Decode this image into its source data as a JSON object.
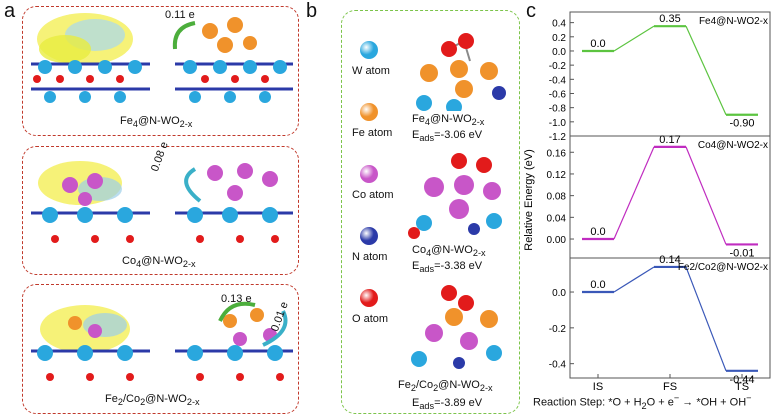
{
  "panel_a": {
    "label": "a",
    "structures": [
      {
        "name_html": "Fe<sub>4</sub>@N-WO<sub>2-x</sub>",
        "transfer": [
          "0.11 e"
        ]
      },
      {
        "name_html": "Co<sub>4</sub>@N-WO<sub>2-x</sub>",
        "transfer": [
          "0.08 e"
        ]
      },
      {
        "name_html": "Fe<sub>2</sub>/Co<sub>2</sub>@N-WO<sub>2-x</sub>",
        "transfer": [
          "0.13 e",
          "0.01 e"
        ]
      }
    ]
  },
  "panel_b": {
    "label": "b",
    "legend": [
      {
        "label": "W atom",
        "color": "#2aa7de"
      },
      {
        "label": "Fe atom",
        "color": "#f0922b"
      },
      {
        "label": "Co atom",
        "color": "#c856c8"
      },
      {
        "label": "N atom",
        "color": "#2b3aa8"
      },
      {
        "label": "O atom",
        "color": "#e21b1b"
      }
    ],
    "structures": [
      {
        "name_html": "Fe<sub>4</sub>@N-WO<sub>2-x</sub>",
        "eads_html": "E<sub>ads</sub>=-3.06 eV"
      },
      {
        "name_html": "Co<sub>4</sub>@N-WO<sub>2-x</sub>",
        "eads_html": "E<sub>ads</sub>=-3.38 eV"
      },
      {
        "name_html": "Fe<sub>2</sub>/Co<sub>2</sub>@N-WO<sub>2-x</sub>",
        "eads_html": "E<sub>ads</sub>=-3.89 eV"
      }
    ]
  },
  "panel_c": {
    "label": "c",
    "ylabel": "Relative Energy (eV)",
    "xlabel_html": "Reaction Step: *O + H<sub>2</sub>O + e<sup>−</sup> → *OH + OH<sup>−</sup>",
    "x_ticks": [
      "IS",
      "FS",
      "TS"
    ]
  },
  "chart_data": [
    {
      "type": "line",
      "title": "Fe4@N-WO2-x",
      "categories": [
        "IS",
        "FS",
        "TS"
      ],
      "values": [
        0.0,
        0.35,
        -0.9
      ],
      "value_labels": [
        "0.0",
        "0.35",
        "-0.90"
      ],
      "color": "#5cc440",
      "ylim": [
        -1.2,
        0.55
      ],
      "yticks": [
        "0.4",
        "0.2",
        "0.0",
        "-0.2",
        "-0.4",
        "-0.6",
        "-0.8",
        "-1.0",
        "-1.2"
      ],
      "ytick_values": [
        0.4,
        0.2,
        0.0,
        -0.2,
        -0.4,
        -0.6,
        -0.8,
        -1.0,
        -1.2
      ]
    },
    {
      "type": "line",
      "title": "Co4@N-WO2-x",
      "categories": [
        "IS",
        "FS",
        "TS"
      ],
      "values": [
        0.0,
        0.17,
        -0.01
      ],
      "value_labels": [
        "0.0",
        "0.17",
        "-0.01"
      ],
      "color": "#c02cc0",
      "ylim": [
        -0.035,
        0.19
      ],
      "yticks": [
        "0.16",
        "0.12",
        "0.08",
        "0.04",
        "0.00"
      ],
      "ytick_values": [
        0.16,
        0.12,
        0.08,
        0.04,
        0.0
      ]
    },
    {
      "type": "line",
      "title": "Fe2/Co2@N-WO2-x",
      "categories": [
        "IS",
        "FS",
        "TS"
      ],
      "values": [
        0.0,
        0.14,
        -0.44
      ],
      "value_labels": [
        "0.0",
        "0.14",
        "-0.44"
      ],
      "color": "#3a58b8",
      "ylim": [
        -0.48,
        0.19
      ],
      "yticks": [
        "0.2",
        "0.0",
        "-0.2",
        "-0.4"
      ],
      "ytick_values": [
        0.2,
        0.0,
        -0.2,
        -0.4
      ]
    }
  ]
}
